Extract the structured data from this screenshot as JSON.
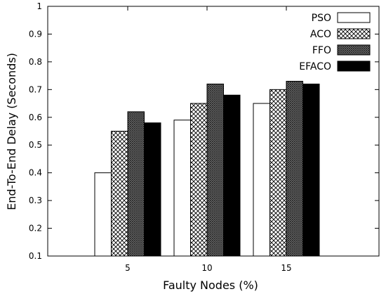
{
  "chart_data": {
    "type": "bar",
    "title": "",
    "xlabel": "Faulty Nodes (%)",
    "ylabel": "End-To-End Delay (Seconds)",
    "categories": [
      "5",
      "10",
      "15"
    ],
    "ylim": [
      0.1,
      1
    ],
    "yticks": [
      "0.1",
      "0.2",
      "0.3",
      "0.4",
      "0.5",
      "0.6",
      "0.7",
      "0.8",
      "0.9",
      "1"
    ],
    "grid": false,
    "legend_position": "top-right",
    "series": [
      {
        "name": "PSO",
        "values": [
          0.4,
          0.59,
          0.65
        ],
        "fill": "white",
        "color": "#ffffff"
      },
      {
        "name": "ACO",
        "values": [
          0.55,
          0.65,
          0.7
        ],
        "fill": "crosshatch",
        "color": "#ffffff"
      },
      {
        "name": "FFO",
        "values": [
          0.62,
          0.72,
          0.73
        ],
        "fill": "dense-gray",
        "color": "#6b6b6b"
      },
      {
        "name": "EFACO",
        "values": [
          0.58,
          0.68,
          0.72
        ],
        "fill": "black",
        "color": "#000000"
      }
    ]
  }
}
